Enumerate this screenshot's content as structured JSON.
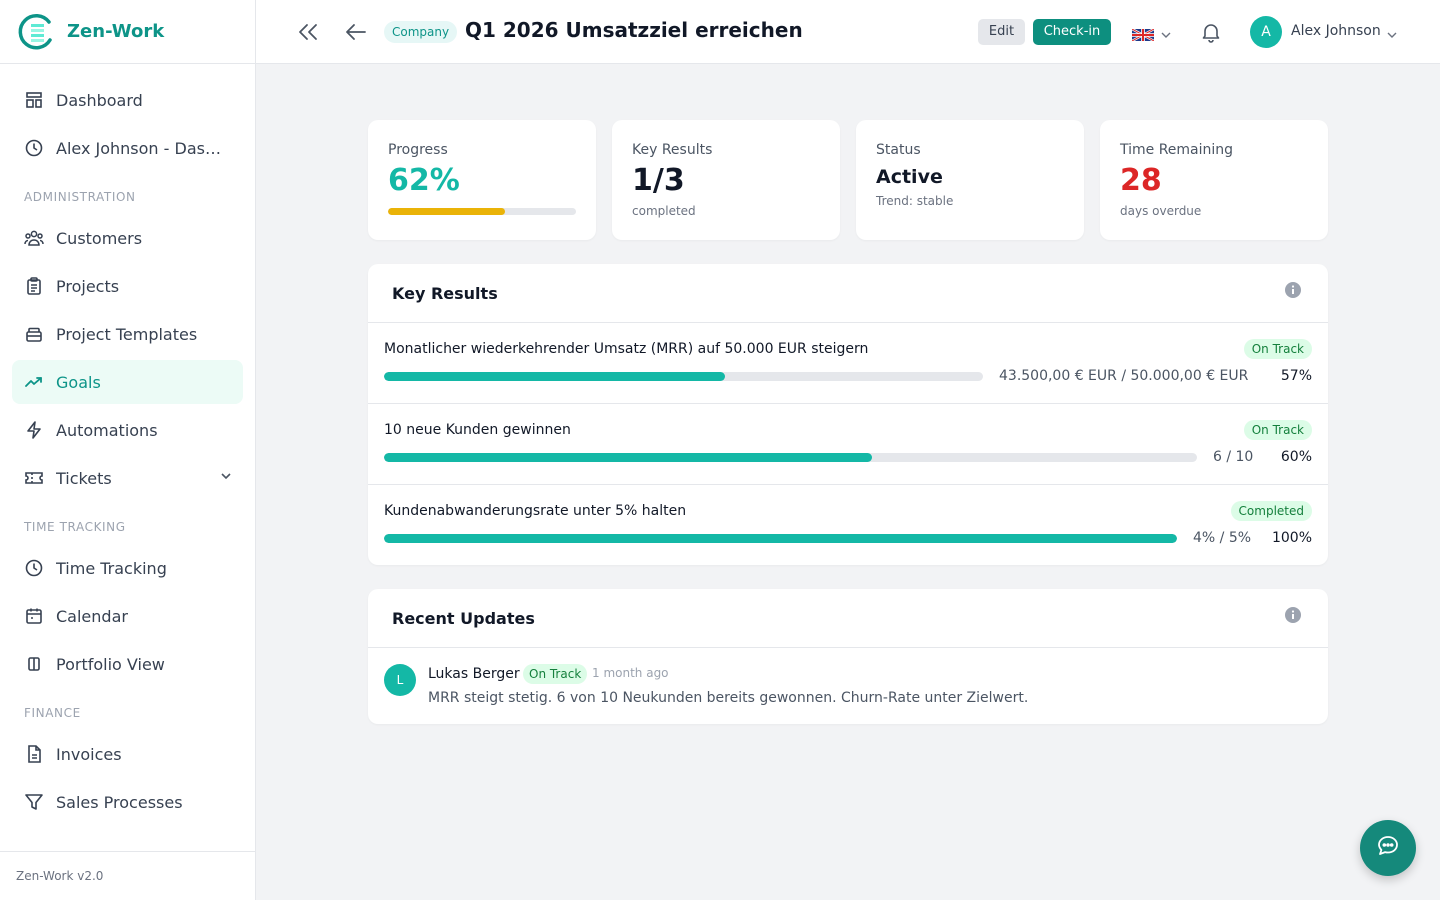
{
  "brand": {
    "name": "Zen-Work",
    "version": "Zen-Work v2.0"
  },
  "sidebar": {
    "top_items": [
      {
        "label": "Dashboard",
        "icon": "dashboard-icon"
      },
      {
        "label": "Alex Johnson - Dashb...",
        "icon": "clock-icon"
      }
    ],
    "administration": {
      "title": "ADMINISTRATION",
      "items": [
        {
          "label": "Customers",
          "icon": "users-icon"
        },
        {
          "label": "Projects",
          "icon": "clipboard-icon"
        },
        {
          "label": "Project Templates",
          "icon": "template-icon"
        },
        {
          "label": "Goals",
          "icon": "trending-up-icon",
          "active": true
        },
        {
          "label": "Automations",
          "icon": "lightning-icon"
        },
        {
          "label": "Tickets",
          "icon": "ticket-icon"
        }
      ]
    },
    "time_tracking": {
      "title": "TIME TRACKING",
      "items": [
        {
          "label": "Time Tracking",
          "icon": "clock-icon"
        },
        {
          "label": "Calendar",
          "icon": "calendar-icon"
        },
        {
          "label": "Portfolio View",
          "icon": "columns-icon"
        }
      ]
    },
    "finance": {
      "title": "FINANCE",
      "items": [
        {
          "label": "Invoices",
          "icon": "document-icon"
        },
        {
          "label": "Sales Processes",
          "icon": "funnel-icon"
        }
      ]
    }
  },
  "header": {
    "badge": "Company",
    "title": "Q1 2026 Umsatzziel erreichen",
    "edit_label": "Edit",
    "checkin_label": "Check-in",
    "language_flag": "uk-flag-icon",
    "user": {
      "initial": "A",
      "name": "Alex Johnson"
    }
  },
  "stats": {
    "progress": {
      "title": "Progress",
      "value": "62%",
      "fraction": 0.62
    },
    "key_results": {
      "title": "Key Results",
      "value": "1/3",
      "sub": "completed"
    },
    "status": {
      "title": "Status",
      "value": "Active",
      "sub": "Trend: stable"
    },
    "time_remaining": {
      "title": "Time Remaining",
      "value": "28",
      "sub": "days overdue"
    }
  },
  "key_results": {
    "title": "Key Results",
    "items": [
      {
        "title": "Monatlicher wiederkehrender Umsatz (MRR) auf 50.000 EUR steigern",
        "status": "On Track",
        "value": "43.500,00 € EUR / 50.000,00 € EUR",
        "percent": "57%",
        "fraction": 0.57
      },
      {
        "title": "10 neue Kunden gewinnen",
        "status": "On Track",
        "value": "6 / 10",
        "percent": "60%",
        "fraction": 0.6
      },
      {
        "title": "Kundenabwanderungsrate unter 5% halten",
        "status": "Completed",
        "value": "4% / 5%",
        "percent": "100%",
        "fraction": 1.0
      }
    ]
  },
  "updates": {
    "title": "Recent Updates",
    "items": [
      {
        "initial": "L",
        "author": "Lukas Berger",
        "status": "On Track",
        "time": "1 month ago",
        "text": "MRR steigt stetig. 6 von 10 Neukunden bereits gewonnen. Churn-Rate unter Zielwert."
      }
    ]
  },
  "colors": {
    "accent": "#0d9488",
    "progress_bar": "#eab308",
    "overdue": "#dc2626",
    "kr_bar": "#14b8a6"
  }
}
